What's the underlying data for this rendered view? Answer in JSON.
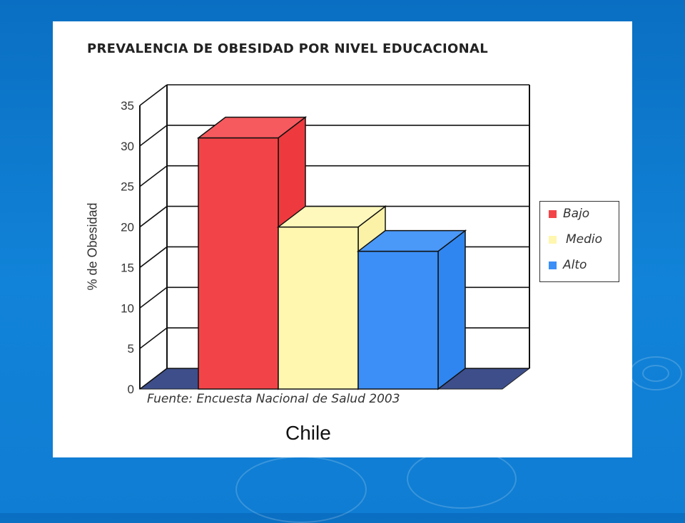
{
  "chart_data": {
    "type": "bar",
    "title": "PREVALENCIA DE OBESIDAD POR NIVEL EDUCACIONAL",
    "ylabel": "% de Obesidad",
    "xlabel": "",
    "ylim": [
      0,
      35
    ],
    "yticks": [
      "0",
      "5",
      "10",
      "15",
      "20",
      "25",
      "30",
      "35"
    ],
    "grid": true,
    "legend_position": "right",
    "series": [
      {
        "name": "Bajo",
        "value": 31,
        "color": "#f24448"
      },
      {
        "name": "Medio",
        "value": 20,
        "color": "#fff6b0"
      },
      {
        "name": "Alto",
        "value": 17,
        "color": "#3b8ff7"
      }
    ],
    "source": "Fuente: Encuesta Nacional de Salud 2003",
    "subtitle": "Chile"
  }
}
